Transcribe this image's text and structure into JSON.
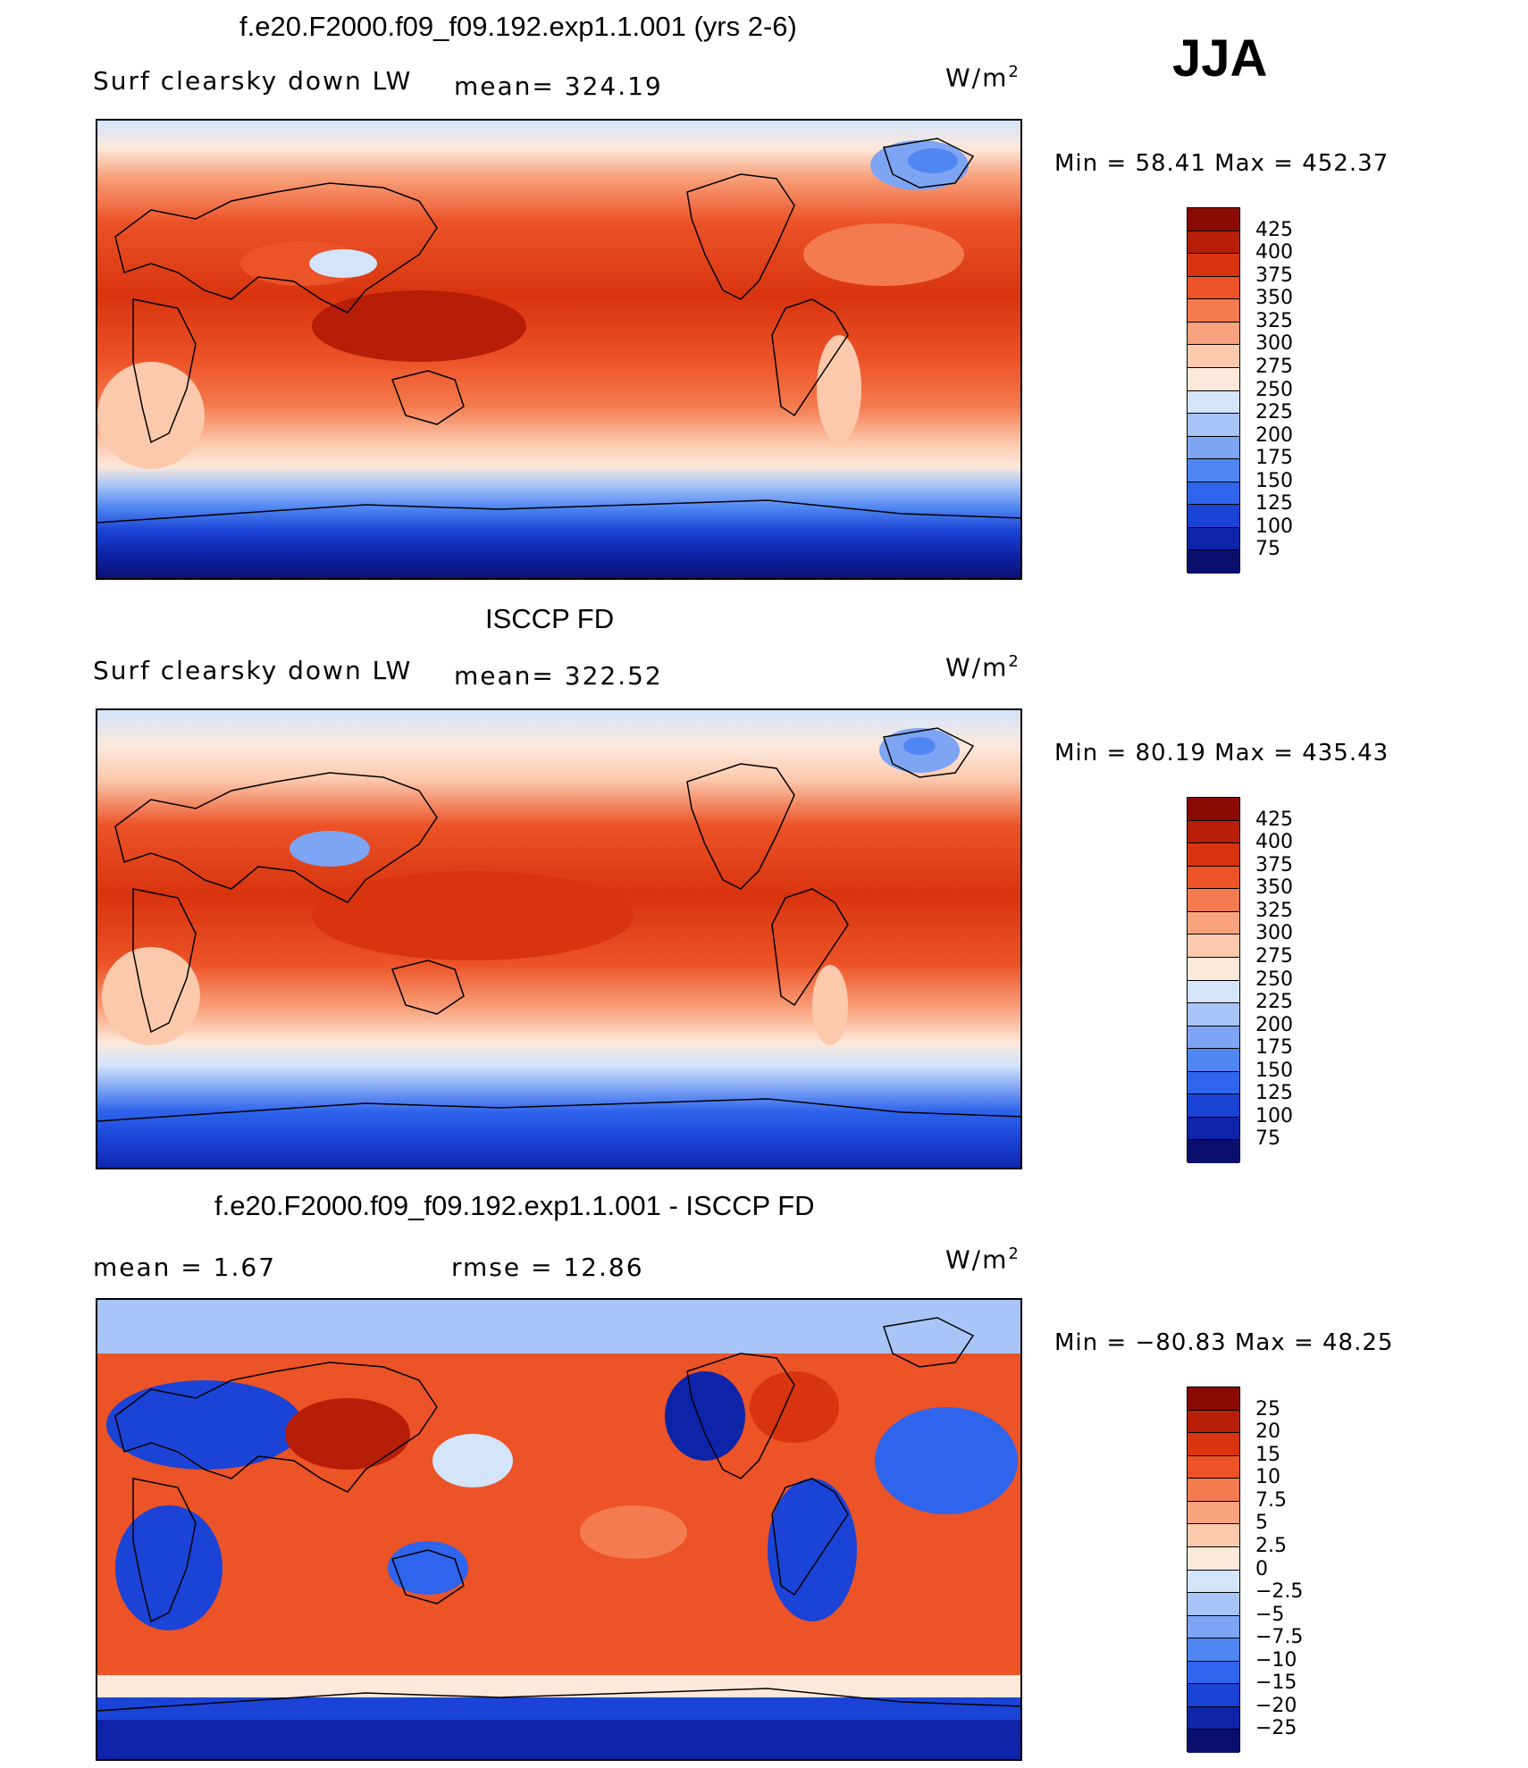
{
  "season": "JJA",
  "units": "W/m",
  "units_sup": "2",
  "colors": {
    "abs_scale": [
      "#0a0f6e",
      "#0d24a8",
      "#1b43d6",
      "#2f64ec",
      "#4f86f2",
      "#7ea5f4",
      "#a9c4f7",
      "#d3e4fb",
      "#fde8da",
      "#fcc9ad",
      "#f9a37e",
      "#f47b4f",
      "#ec5327",
      "#d8340f",
      "#b71e08",
      "#8a0b04"
    ],
    "diff_scale": [
      "#0a0f6e",
      "#0d24a8",
      "#1b43d6",
      "#2f64ec",
      "#4f86f2",
      "#7ea5f4",
      "#a9c4f7",
      "#d3e4fb",
      "#fde8da",
      "#fcc9ad",
      "#f9a37e",
      "#f47b4f",
      "#ec5327",
      "#d8340f",
      "#b71e08",
      "#8a0b04"
    ]
  },
  "panels": [
    {
      "title": "f.e20.F2000.f09_f09.192.exp1.1.001 (yrs 2-6)",
      "left_label": "Surf  clearsky  down  LW",
      "stat_label": "mean=  324.19",
      "minmax": "Min  =    58.41  Max  =  452.37",
      "colorbar_labels": [
        "425",
        "400",
        "375",
        "350",
        "325",
        "300",
        "275",
        "250",
        "225",
        "200",
        "175",
        "150",
        "125",
        "100",
        "75"
      ]
    },
    {
      "title": "ISCCP FD",
      "left_label": "Surf  clearsky  down  LW",
      "stat_label": "mean=  322.52",
      "minmax": "Min  =    80.19  Max  =  435.43",
      "colorbar_labels": [
        "425",
        "400",
        "375",
        "350",
        "325",
        "300",
        "275",
        "250",
        "225",
        "200",
        "175",
        "150",
        "125",
        "100",
        "75"
      ]
    },
    {
      "title": "f.e20.F2000.f09_f09.192.exp1.1.001 - ISCCP FD",
      "left_label": "mean  =       1.67",
      "stat_label": "rmse  =     12.86",
      "minmax": "Min  = −80.83  Max  =     48.25",
      "colorbar_labels": [
        "25",
        "20",
        "15",
        "10",
        "7.5",
        "5",
        "2.5",
        "0",
        "−2.5",
        "−5",
        "−7.5",
        "−10",
        "−15",
        "−20",
        "−25"
      ]
    }
  ]
}
